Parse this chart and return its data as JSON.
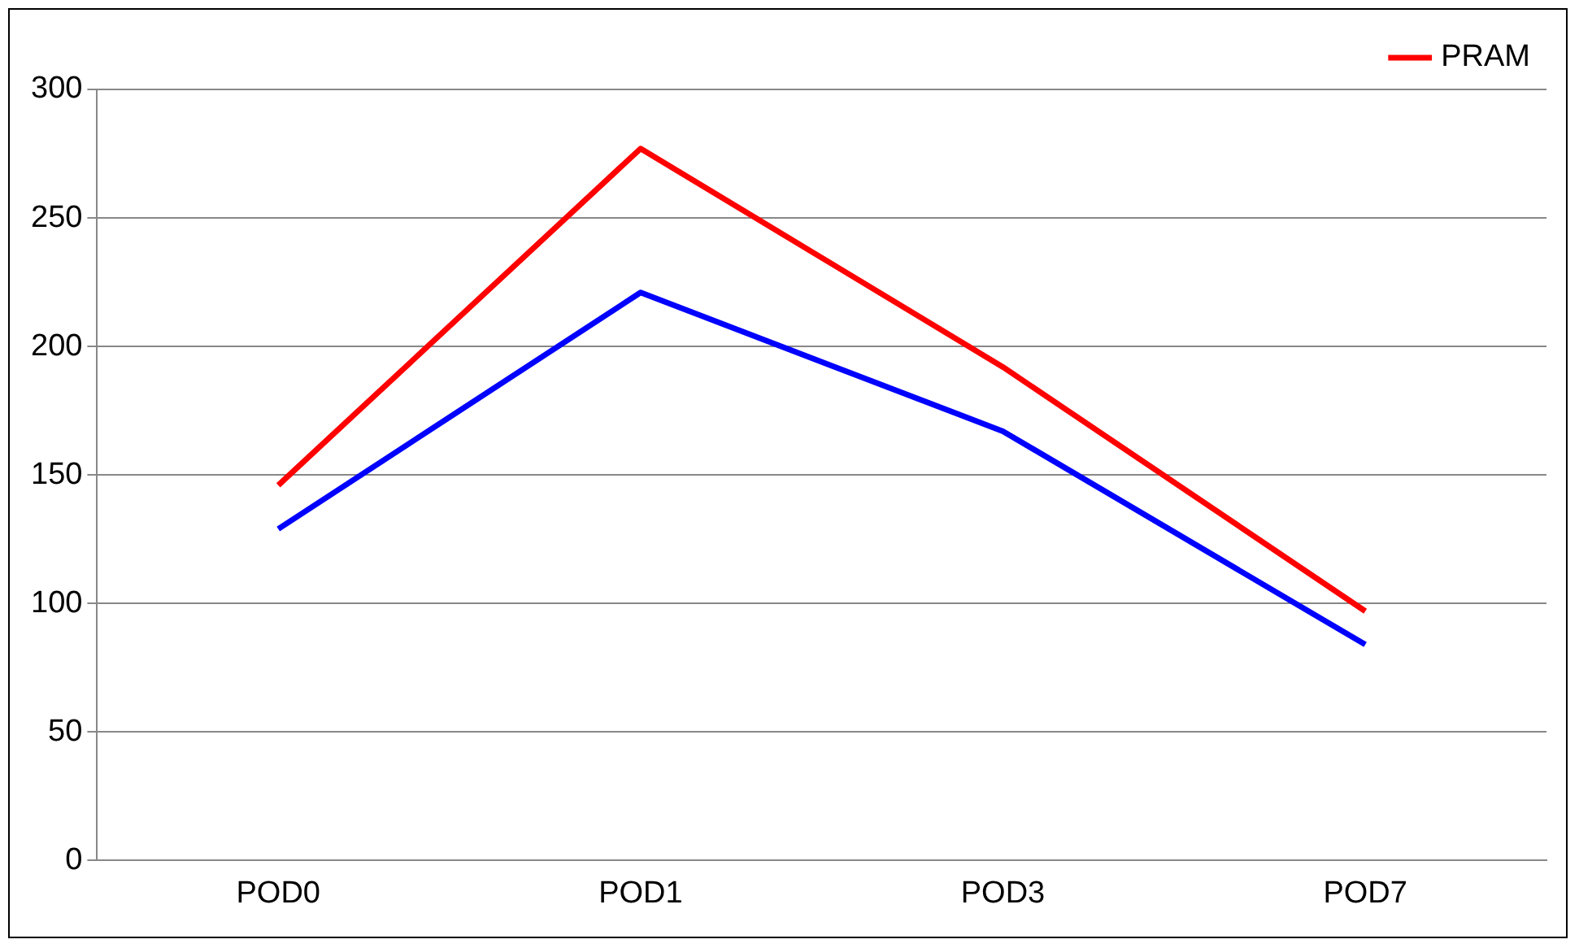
{
  "chart_data": {
    "type": "line",
    "categories": [
      "POD0",
      "POD1",
      "POD3",
      "POD7"
    ],
    "series": [
      {
        "color": "#0000ff",
        "values": [
          129,
          221,
          167,
          84
        ]
      },
      {
        "name": "PRAM",
        "color": "#ff0000",
        "values": [
          146,
          277,
          192,
          97
        ]
      }
    ],
    "ylim": [
      0,
      300
    ],
    "yticks": [
      0,
      50,
      100,
      150,
      200,
      250,
      300
    ],
    "grid": "y",
    "legend": "top right",
    "marker": "none",
    "line_style": "solid"
  }
}
